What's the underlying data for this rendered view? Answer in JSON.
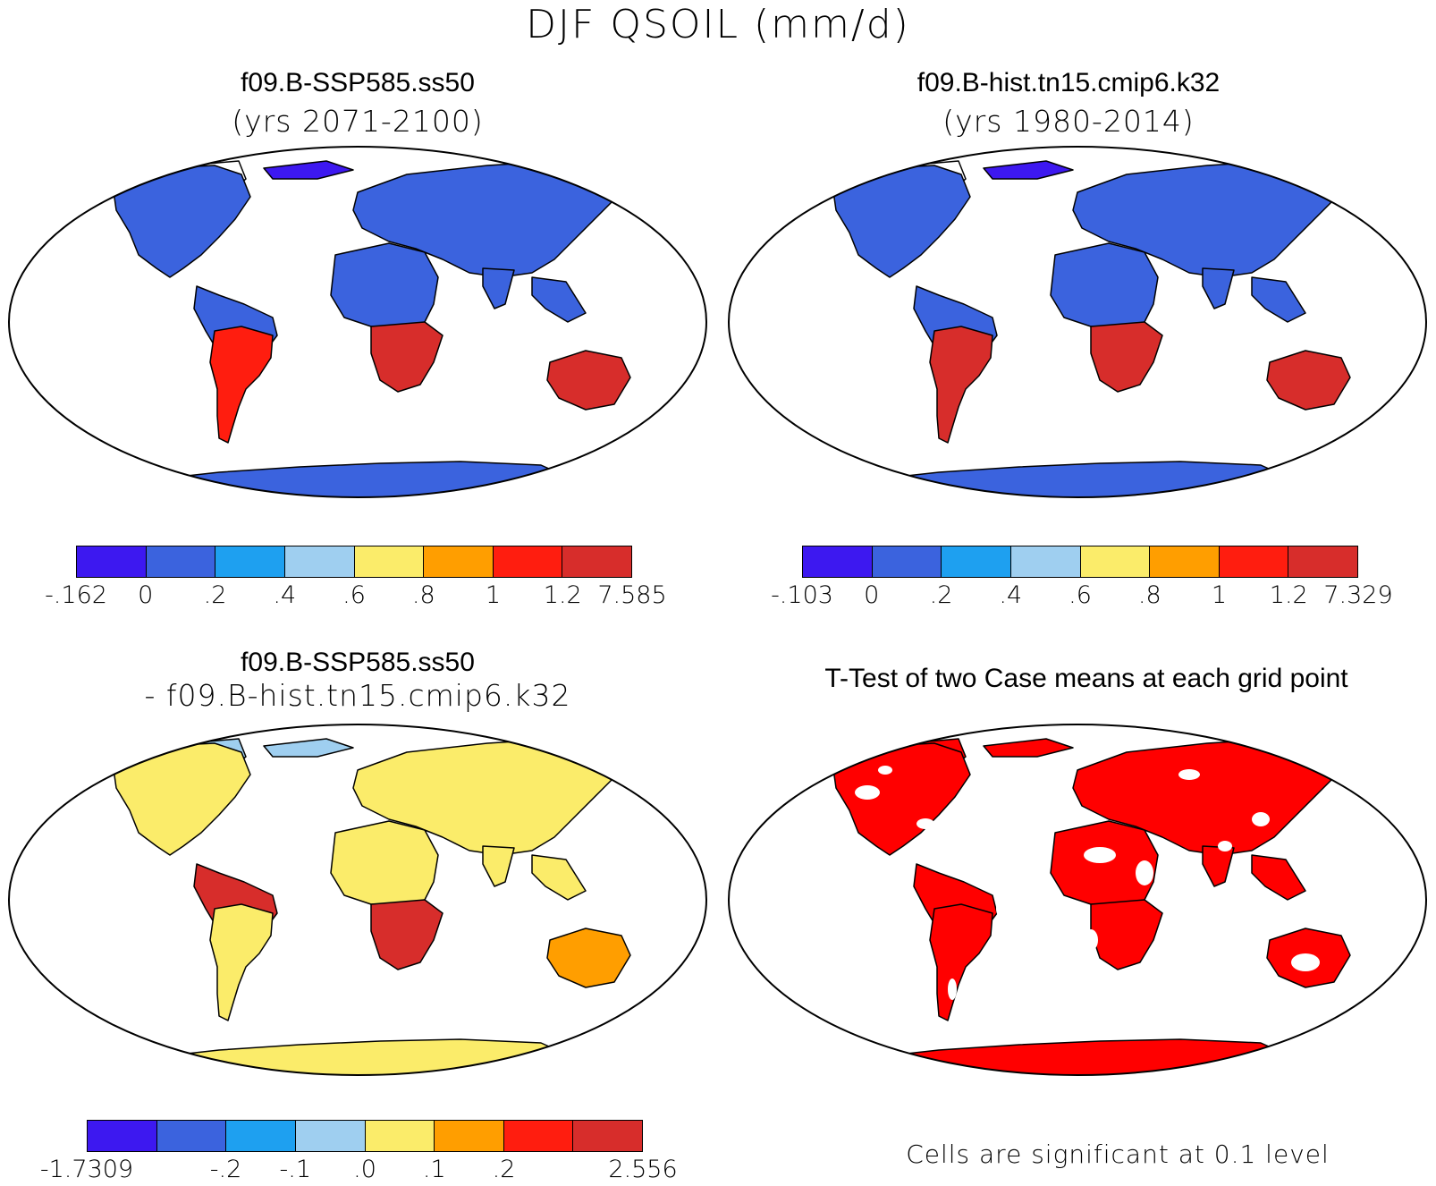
{
  "title": "DJF QSOIL (mm/d)",
  "colors": {
    "ocean": "#ffffff",
    "outline": "#000000",
    "sig": "#ff0000",
    "scale": [
      "#3d18f0",
      "#3b63de",
      "#1ea0f0",
      "#9fcff0",
      "#fbec6a",
      "#ff9e00",
      "#ff1d0f",
      "#d72d2b"
    ]
  },
  "panels": [
    {
      "title": "f09.B-SSP585.ss50",
      "subtitle": "(yrs 2071-2100)",
      "legend_ticks": [
        "-.162",
        "0",
        ".2",
        ".4",
        ".6",
        ".8",
        "1",
        "1.2",
        "7.585"
      ],
      "regions": {
        "namerica": 1,
        "samerica_n": 1,
        "samerica_s": 6,
        "africa_n": 1,
        "africa_s": 7,
        "eurasia": 1,
        "india": 1,
        "seasia": 1,
        "australia": 7,
        "greenland": 0,
        "antarctica": 1,
        "arctic": 0
      }
    },
    {
      "title": "f09.B-hist.tn15.cmip6.k32",
      "subtitle": "(yrs 1980-2014)",
      "legend_ticks": [
        "-.103",
        "0",
        ".2",
        ".4",
        ".6",
        ".8",
        "1",
        "1.2",
        "7.329"
      ],
      "regions": {
        "namerica": 1,
        "samerica_n": 1,
        "samerica_s": 7,
        "africa_n": 1,
        "africa_s": 7,
        "eurasia": 1,
        "india": 1,
        "seasia": 1,
        "australia": 7,
        "greenland": 0,
        "antarctica": 1,
        "arctic": 0
      }
    },
    {
      "title": "f09.B-SSP585.ss50",
      "subtitle": "- f09.B-hist.tn15.cmip6.k32",
      "legend_ticks": [
        "-1.7309",
        "",
        "-.2",
        "-.1",
        ".0",
        ".1",
        ".2",
        "",
        "2.556"
      ],
      "regions": {
        "namerica": 4,
        "samerica_n": 7,
        "samerica_s": 4,
        "africa_n": 4,
        "africa_s": 7,
        "eurasia": 4,
        "india": 4,
        "seasia": 4,
        "australia": 5,
        "greenland": 3,
        "antarctica": 4,
        "arctic": 3
      }
    },
    {
      "title": "T-Test of two Case means at each grid point",
      "note": "Cells are significant at 0.1 level"
    }
  ]
}
